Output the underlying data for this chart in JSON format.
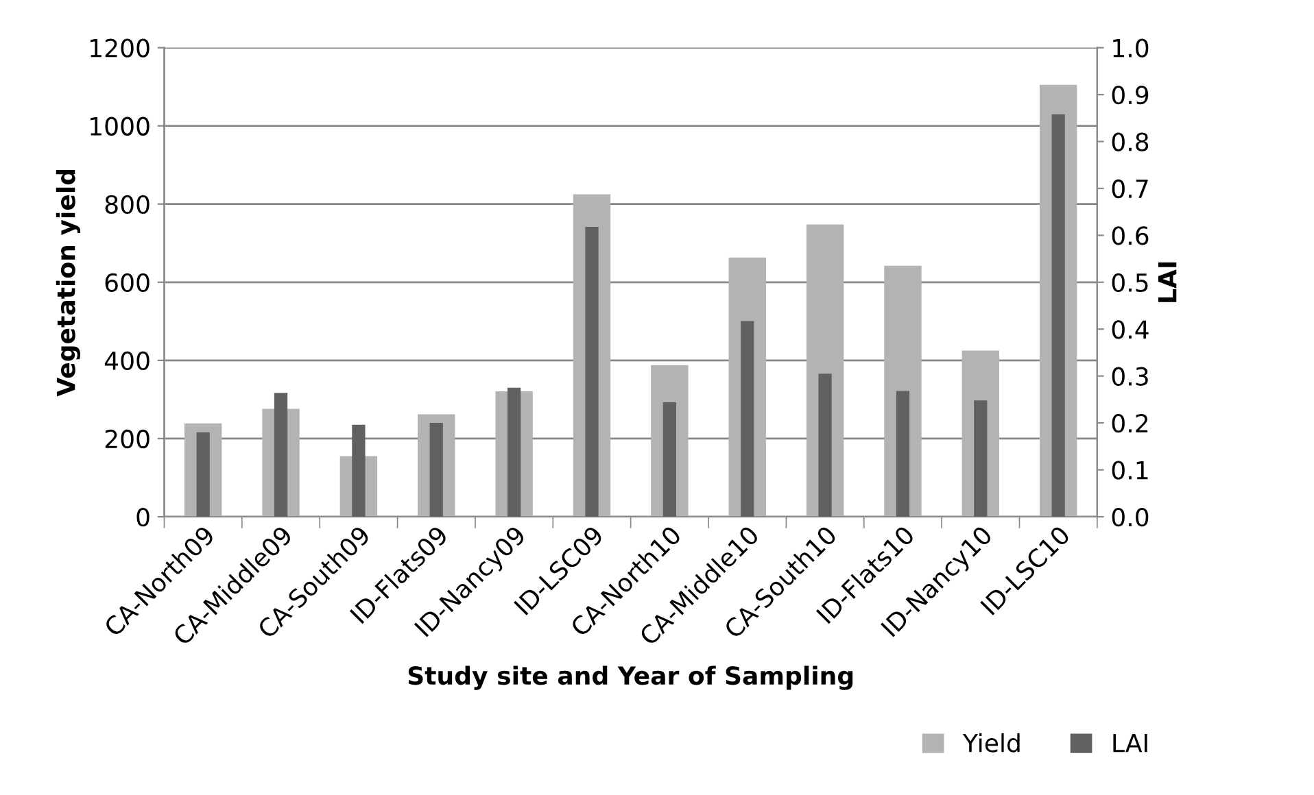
{
  "chart_data": {
    "type": "bar",
    "xlabel": "Study site and Year of Sampling",
    "ylabel": "Vegetation yield",
    "y2label": "LAI",
    "categories": [
      "CA-North09",
      "CA-Middle09",
      "CA-South09",
      "ID-Flats09",
      "ID-Nancy09",
      "ID-LSC09",
      "CA-North10",
      "CA-Middle10",
      "CA-South10",
      "ID-Flats10",
      "ID-Nancy10",
      "ID-LSC10"
    ],
    "series": [
      {
        "name": "Yield",
        "color": "#b3b3b3",
        "values": [
          239,
          276,
          155,
          262,
          321,
          825,
          388,
          663,
          748,
          642,
          425,
          1105
        ]
      },
      {
        "name": "LAI",
        "color": "#616161",
        "axis": "y2",
        "values": [
          0.18,
          0.264,
          0.196,
          0.2,
          0.275,
          0.618,
          0.244,
          0.417,
          0.305,
          0.268,
          0.248,
          0.858
        ]
      }
    ],
    "ylim": [
      0,
      1200
    ],
    "yticks": [
      0,
      200,
      400,
      600,
      800,
      1000,
      1200
    ],
    "y2lim": [
      0,
      1.0
    ],
    "y2ticks": [
      {
        "value": 0,
        "label": "0.0"
      },
      0.1,
      0.2,
      0.3,
      0.4,
      0.5,
      0.6,
      0.7,
      0.8,
      0.9,
      {
        "value": 1,
        "label": "1.0"
      }
    ],
    "grid": "y",
    "legend": "bottom right"
  }
}
